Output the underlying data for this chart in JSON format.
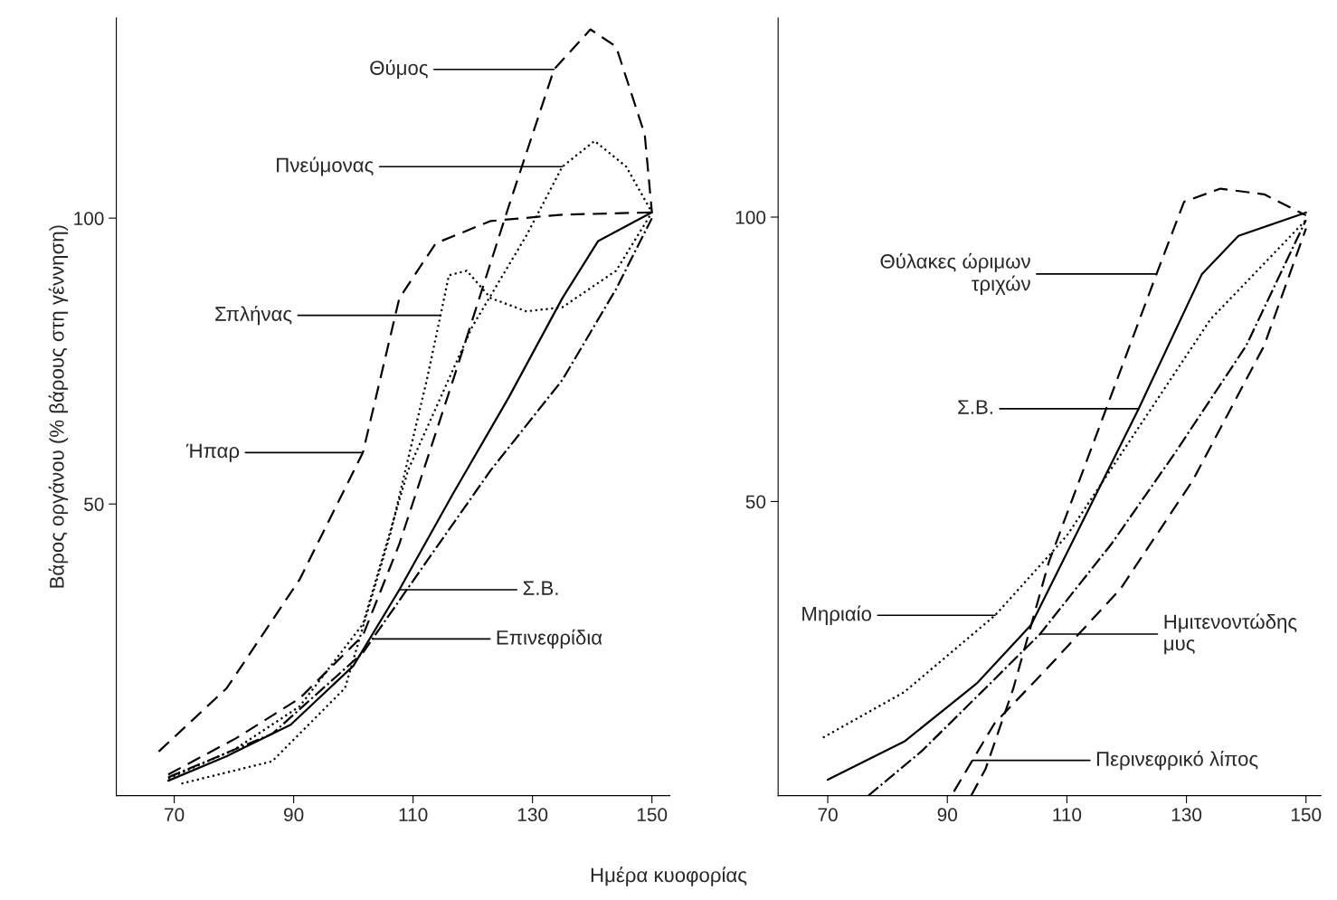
{
  "chart_data": [
    {
      "type": "line",
      "ylabel": "Βάρος οργάνου (% βάρους στη γέννηση)",
      "xlabel": "Ημέρα κυοφορίας",
      "xlim": [
        60.3,
        153
      ],
      "ylim": [
        -1,
        135
      ],
      "xticks": [
        70,
        90,
        110,
        130,
        150
      ],
      "yticks": [
        50,
        100
      ],
      "grid": false,
      "legend": false,
      "series": [
        {
          "color": "#000000",
          "line_style": "solid",
          "x": [
            69,
            78.8,
            89.5,
            100,
            107.7,
            116.8,
            126,
            135,
            141,
            150
          ],
          "values": [
            1.6,
            5.9,
            11.4,
            21.7,
            35,
            52,
            68.6,
            86,
            96,
            101
          ]
        },
        {
          "color": "#000000",
          "line_style": "dashed",
          "x": [
            67.4,
            78.8,
            91,
            101.6,
            107.7,
            113.8,
            123,
            135,
            150
          ],
          "values": [
            6.7,
            17.8,
            36.8,
            59,
            86,
            95.6,
            99.5,
            100.6,
            101
          ]
        },
        {
          "color": "#000000",
          "line_style": "dashed",
          "x": [
            69,
            80.3,
            91,
            101.6,
            107.7,
            116.8,
            126,
            133.6,
            139.7,
            144,
            148.8,
            150
          ],
          "values": [
            2.7,
            9,
            16,
            27,
            43,
            72,
            102,
            126,
            133,
            130,
            114.6,
            101
          ]
        },
        {
          "color": "#000000",
          "line_style": "dotted",
          "x": [
            69,
            80,
            91,
            101.6,
            109.2,
            119.9,
            129,
            135,
            140.4,
            145.7,
            150
          ],
          "values": [
            2,
            7,
            14.6,
            29,
            56,
            81,
            97,
            109,
            113.5,
            109,
            101
          ]
        },
        {
          "color": "#000000",
          "line_style": "dotted",
          "x": [
            71.2,
            86.4,
            98.6,
            106.2,
            112.3,
            114.6,
            116,
            119,
            123,
            129,
            135,
            144,
            150
          ],
          "values": [
            1.1,
            5,
            17.8,
            44.8,
            71.7,
            83,
            90,
            90.8,
            86,
            83.7,
            84.4,
            90.8,
            101
          ]
        },
        {
          "color": "#000000",
          "line_style": "dashdot",
          "x": [
            69,
            86.4,
            101.6,
            103.2,
            112.3,
            123,
            135,
            144,
            150
          ],
          "values": [
            2.2,
            9.8,
            24,
            26.4,
            40,
            55.9,
            71.7,
            87.6,
            100
          ]
        }
      ],
      "annotations": [
        {
          "text": "Θύμος",
          "x": 133.6,
          "y": 126
        },
        {
          "text": "Πνεύμονας",
          "x": 135,
          "y": 109
        },
        {
          "text": "Σπλήνας",
          "x": 114.6,
          "y": 83
        },
        {
          "text": "Ήπαρ",
          "x": 101.6,
          "y": 59
        },
        {
          "text": "Σ.Β.",
          "x": 107.7,
          "y": 35
        },
        {
          "text": "Επινεφρίδια",
          "x": 103.2,
          "y": 26.4
        }
      ]
    },
    {
      "type": "line",
      "xlim": [
        61.7,
        152.5
      ],
      "ylim": [
        -1.7,
        135
      ],
      "xticks": [
        70,
        90,
        110,
        130,
        150
      ],
      "yticks": [
        50,
        100
      ],
      "grid": false,
      "legend": false,
      "series": [
        {
          "color": "#000000",
          "line_style": "solid",
          "x": [
            70,
            82.8,
            94.9,
            104,
            113,
            122,
            132.6,
            138.7,
            150
          ],
          "values": [
            1.1,
            7.8,
            18,
            28.3,
            47.3,
            66.3,
            90,
            96.7,
            100.8
          ]
        },
        {
          "color": "#000000",
          "line_style": "dashed",
          "x": [
            94,
            96.4,
            101,
            107,
            116,
            125,
            129.6,
            135.7,
            143,
            150
          ],
          "values": [
            -1.7,
            3,
            17,
            39.4,
            64.7,
            90,
            102.7,
            105,
            104,
            100.3
          ]
        },
        {
          "color": "#000000",
          "line_style": "dotted",
          "x": [
            69.2,
            82.8,
            98,
            110,
            122,
            134,
            150
          ],
          "values": [
            8.5,
            16.5,
            30,
            44,
            63,
            82,
            99.5
          ]
        },
        {
          "color": "#000000",
          "line_style": "dashdot",
          "x": [
            76.8,
            85.8,
            96.4,
            105.5,
            117.5,
            128,
            140,
            150
          ],
          "values": [
            -1.7,
            6.2,
            17.2,
            26.7,
            42.6,
            58.4,
            77.4,
            99.5
          ]
        },
        {
          "color": "#000000",
          "line_style": "dashed",
          "x": [
            91.1,
            94.2,
            97.9,
            107,
            119,
            131,
            143,
            150
          ],
          "values": [
            -1,
            4.5,
            11,
            21,
            34.7,
            53.6,
            77.4,
            98
          ]
        }
      ],
      "annotations": [
        {
          "text": "Θύλακες ώριμων\nτριχών",
          "x": 125,
          "y": 90
        },
        {
          "text": "Σ.Β.",
          "x": 122,
          "y": 66.3
        },
        {
          "text": "Μηριαίο",
          "x": 98,
          "y": 30
        },
        {
          "text": "Ημιτενοντώδης\nμυς",
          "x": 105.5,
          "y": 26.7
        },
        {
          "text": "Περινεφρικό λίπος",
          "x": 94.2,
          "y": 4.5
        }
      ]
    }
  ]
}
